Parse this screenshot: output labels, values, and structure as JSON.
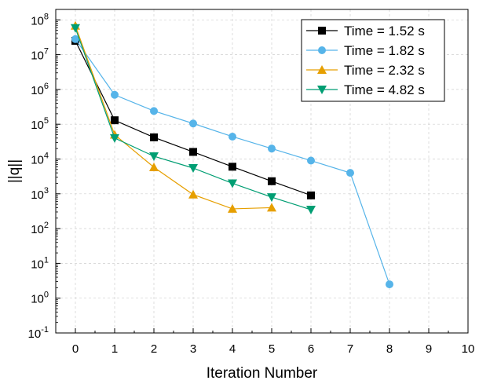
{
  "chart_data": {
    "type": "line",
    "xlabel": "Iteration Number",
    "ylabel": "||q||",
    "xlim": [
      -0.5,
      10
    ],
    "ylim_log10": [
      -1,
      8.3
    ],
    "y_scale": "log",
    "grid": true,
    "legend_position": "top-right",
    "x_ticks": [
      {
        "value": 0,
        "label": "0"
      },
      {
        "value": 1,
        "label": "1"
      },
      {
        "value": 2,
        "label": "2"
      },
      {
        "value": 3,
        "label": "3"
      },
      {
        "value": 4,
        "label": "4"
      },
      {
        "value": 5,
        "label": "5"
      },
      {
        "value": 6,
        "label": "6"
      },
      {
        "value": 7,
        "label": "7"
      },
      {
        "value": 8,
        "label": "8"
      },
      {
        "value": 9,
        "label": "9"
      },
      {
        "value": 10,
        "label": "10"
      }
    ],
    "y_ticks": [
      {
        "exp": -1,
        "base": "10",
        "sup": "-1"
      },
      {
        "exp": 0,
        "base": "10",
        "sup": "0"
      },
      {
        "exp": 1,
        "base": "10",
        "sup": "1"
      },
      {
        "exp": 2,
        "base": "10",
        "sup": "2"
      },
      {
        "exp": 3,
        "base": "10",
        "sup": "3"
      },
      {
        "exp": 4,
        "base": "10",
        "sup": "4"
      },
      {
        "exp": 5,
        "base": "10",
        "sup": "5"
      },
      {
        "exp": 6,
        "base": "10",
        "sup": "6"
      },
      {
        "exp": 7,
        "base": "10",
        "sup": "7"
      },
      {
        "exp": 8,
        "base": "10",
        "sup": "8"
      }
    ],
    "series": [
      {
        "name": "Time = 1.52 s",
        "color": "#000000",
        "marker": "square",
        "x": [
          0,
          1,
          2,
          3,
          4,
          5,
          6
        ],
        "y": [
          25000000,
          130000,
          42000,
          16000,
          6000,
          2300,
          900
        ]
      },
      {
        "name": "Time = 1.82 s",
        "color": "#56B4E9",
        "marker": "circle",
        "x": [
          0,
          1,
          2,
          3,
          4,
          5,
          6,
          7,
          8
        ],
        "y": [
          28000000,
          700000,
          240000,
          105000,
          44000,
          20000,
          9000,
          4000,
          2.5
        ]
      },
      {
        "name": "Time = 2.32 s",
        "color": "#E69F00",
        "marker": "triangle-up",
        "x": [
          0,
          1,
          2,
          3,
          4,
          5
        ],
        "y": [
          68000000,
          50000,
          5800,
          950,
          370,
          400
        ]
      },
      {
        "name": "Time = 4.82 s",
        "color": "#009E73",
        "marker": "triangle-down",
        "x": [
          0,
          1,
          2,
          3,
          4,
          5,
          6
        ],
        "y": [
          58000000,
          40000,
          12000,
          5500,
          2000,
          800,
          350
        ]
      }
    ]
  }
}
